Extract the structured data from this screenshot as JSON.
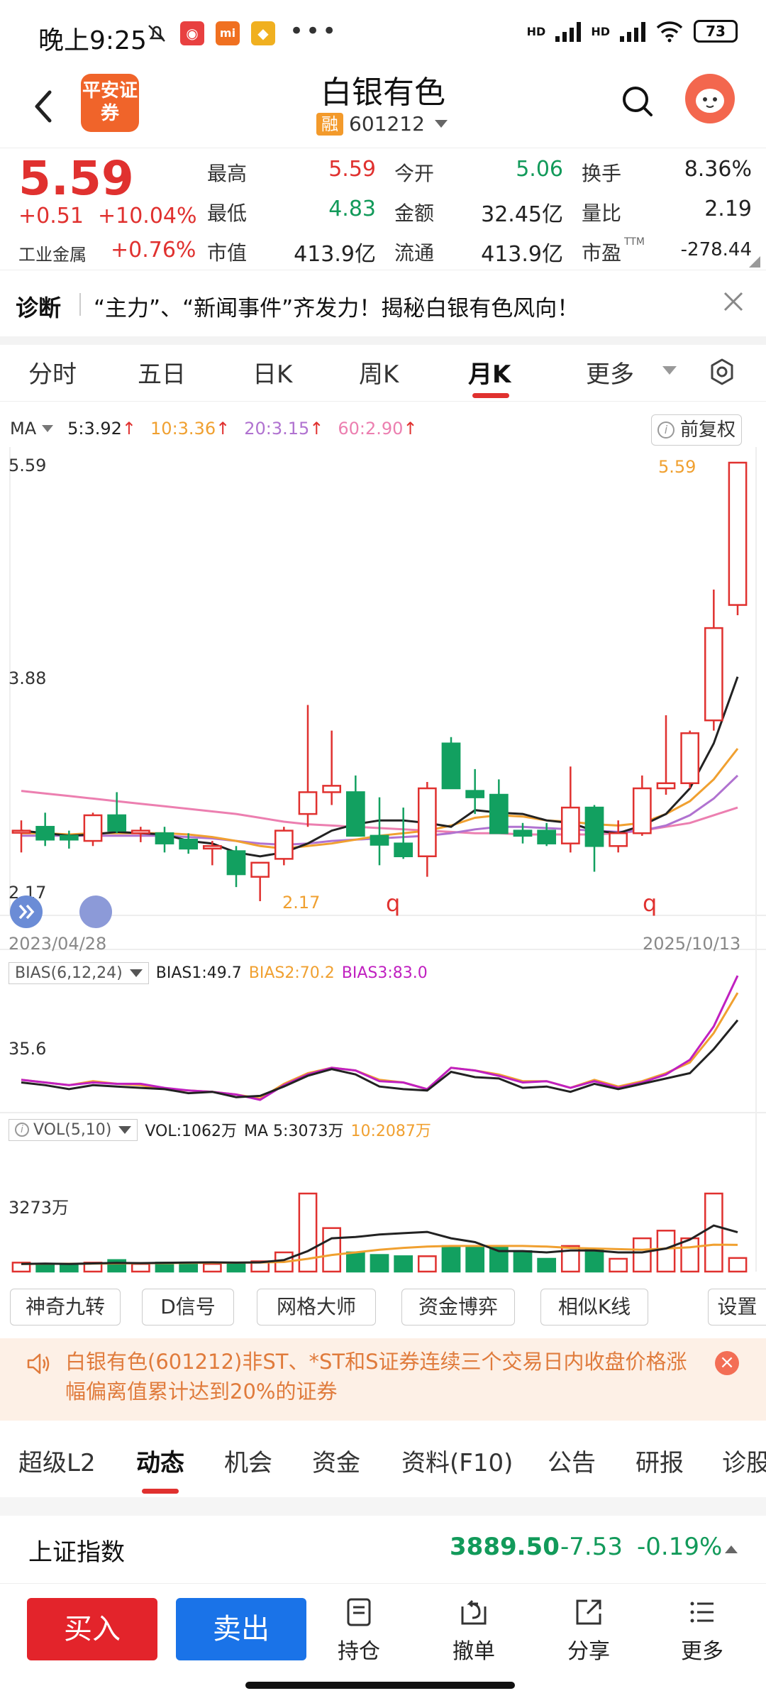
{
  "status_bar": {
    "time": "晚上9:25",
    "hd1": "HD",
    "hd2": "HD",
    "battery": "73"
  },
  "header": {
    "broker_logo_text": "平安证券",
    "title": "白银有色",
    "badge": "融",
    "code": "601212"
  },
  "quote": {
    "price": "5.59",
    "change": "+0.51",
    "change_pct": "+10.04%",
    "industry_name": "工业金属",
    "industry_change": "+0.76%",
    "stats": [
      {
        "label": "最高",
        "value": "5.59",
        "color": "#e0312f"
      },
      {
        "label": "最低",
        "value": "4.83",
        "color": "#129a5a"
      },
      {
        "label": "市值",
        "value": "413.9亿",
        "color": "#222222"
      },
      {
        "label": "今开",
        "value": "5.06",
        "color": "#129a5a"
      },
      {
        "label": "金额",
        "value": "32.45亿",
        "color": "#222222"
      },
      {
        "label": "流通",
        "value": "413.9亿",
        "color": "#222222"
      },
      {
        "label": "换手",
        "value": "8.36%",
        "color": "#222222"
      },
      {
        "label": "量比",
        "value": "2.19",
        "color": "#222222"
      },
      {
        "label": "市盈",
        "value": "-278.44",
        "color": "#222222"
      }
    ],
    "ttm": "TTM"
  },
  "diagnosis": {
    "label": "诊断",
    "text": "“主力”、“新闻事件”齐发力！揭秘白银有色风向！"
  },
  "period_tabs": [
    "分时",
    "五日",
    "日K",
    "周K",
    "月K",
    "更多"
  ],
  "active_period": "月K",
  "ma_legend": {
    "title": "MA",
    "ma5": "5:3.92",
    "ma10": "10:3.36",
    "ma20": "20:3.15",
    "ma60": "60:2.90",
    "arrow": "↑",
    "fq_button": "前复权"
  },
  "colors": {
    "up": "#e0312f",
    "down": "#12a060",
    "ma5": "#222222",
    "ma10": "#f0a030",
    "ma20": "#b072d0",
    "ma60": "#ec7fb0",
    "bias3": "#c020c0"
  },
  "chart_data": {
    "type": "candlestick",
    "period": "monthly",
    "x_start": "2023/04/28",
    "x_end": "2025/10/13",
    "ylim": [
      2.17,
      5.59
    ],
    "y_labels": [
      "5.59",
      "3.88",
      "2.17"
    ],
    "max_label": "5.59",
    "min_label": "2.17",
    "markers": [
      "q",
      "q"
    ],
    "candles": [
      {
        "o": 2.72,
        "h": 2.8,
        "l": 2.55,
        "c": 2.72
      },
      {
        "o": 2.75,
        "h": 2.86,
        "l": 2.6,
        "c": 2.65
      },
      {
        "o": 2.68,
        "h": 2.72,
        "l": 2.58,
        "c": 2.65
      },
      {
        "o": 2.64,
        "h": 2.86,
        "l": 2.6,
        "c": 2.84
      },
      {
        "o": 2.84,
        "h": 3.02,
        "l": 2.7,
        "c": 2.72
      },
      {
        "o": 2.7,
        "h": 2.75,
        "l": 2.63,
        "c": 2.72
      },
      {
        "o": 2.7,
        "h": 2.75,
        "l": 2.55,
        "c": 2.62
      },
      {
        "o": 2.65,
        "h": 2.7,
        "l": 2.54,
        "c": 2.58
      },
      {
        "o": 2.58,
        "h": 2.64,
        "l": 2.45,
        "c": 2.6
      },
      {
        "o": 2.56,
        "h": 2.6,
        "l": 2.28,
        "c": 2.38
      },
      {
        "o": 2.36,
        "h": 2.46,
        "l": 2.17,
        "c": 2.47
      },
      {
        "o": 2.5,
        "h": 2.75,
        "l": 2.45,
        "c": 2.72
      },
      {
        "o": 2.85,
        "h": 3.7,
        "l": 2.75,
        "c": 3.02
      },
      {
        "o": 3.02,
        "h": 3.5,
        "l": 2.92,
        "c": 3.07
      },
      {
        "o": 3.02,
        "h": 3.15,
        "l": 2.68,
        "c": 2.68
      },
      {
        "o": 2.68,
        "h": 2.98,
        "l": 2.45,
        "c": 2.61
      },
      {
        "o": 2.62,
        "h": 2.9,
        "l": 2.5,
        "c": 2.52
      },
      {
        "o": 2.52,
        "h": 3.1,
        "l": 2.36,
        "c": 3.05
      },
      {
        "o": 3.4,
        "h": 3.45,
        "l": 3.05,
        "c": 3.05
      },
      {
        "o": 3.03,
        "h": 3.2,
        "l": 2.85,
        "c": 2.98
      },
      {
        "o": 3.0,
        "h": 3.12,
        "l": 2.7,
        "c": 2.7
      },
      {
        "o": 2.72,
        "h": 2.78,
        "l": 2.62,
        "c": 2.68
      },
      {
        "o": 2.72,
        "h": 2.78,
        "l": 2.6,
        "c": 2.62
      },
      {
        "o": 2.62,
        "h": 3.22,
        "l": 2.55,
        "c": 2.9
      },
      {
        "o": 2.9,
        "h": 2.92,
        "l": 2.4,
        "c": 2.6
      },
      {
        "o": 2.6,
        "h": 2.8,
        "l": 2.55,
        "c": 2.7
      },
      {
        "o": 2.7,
        "h": 3.15,
        "l": 2.68,
        "c": 3.05
      },
      {
        "o": 3.05,
        "h": 3.62,
        "l": 3.0,
        "c": 3.09
      },
      {
        "o": 3.09,
        "h": 3.5,
        "l": 3.05,
        "c": 3.48
      },
      {
        "o": 3.58,
        "h": 4.6,
        "l": 3.5,
        "c": 4.3
      },
      {
        "o": 4.48,
        "h": 5.59,
        "l": 4.4,
        "c": 5.59
      }
    ],
    "ma5": [
      2.72,
      2.7,
      2.68,
      2.69,
      2.71,
      2.7,
      2.69,
      2.64,
      2.62,
      2.55,
      2.52,
      2.55,
      2.62,
      2.72,
      2.77,
      2.8,
      2.8,
      2.78,
      2.75,
      2.88,
      2.86,
      2.85,
      2.8,
      2.78,
      2.72,
      2.7,
      2.76,
      2.85,
      3.05,
      3.4,
      3.92
    ],
    "ma10": [
      2.7,
      2.7,
      2.69,
      2.7,
      2.7,
      2.7,
      2.7,
      2.69,
      2.67,
      2.64,
      2.6,
      2.58,
      2.6,
      2.62,
      2.65,
      2.68,
      2.7,
      2.72,
      2.76,
      2.82,
      2.84,
      2.83,
      2.8,
      2.79,
      2.77,
      2.76,
      2.78,
      2.85,
      2.95,
      3.12,
      3.36
    ],
    "ma20": [
      2.68,
      2.68,
      2.68,
      2.68,
      2.68,
      2.68,
      2.68,
      2.67,
      2.66,
      2.64,
      2.62,
      2.61,
      2.62,
      2.64,
      2.65,
      2.66,
      2.67,
      2.68,
      2.7,
      2.73,
      2.75,
      2.75,
      2.74,
      2.73,
      2.72,
      2.71,
      2.72,
      2.76,
      2.84,
      2.97,
      3.15
    ],
    "ma60": [
      3.03,
      3.01,
      2.99,
      2.97,
      2.95,
      2.93,
      2.91,
      2.89,
      2.87,
      2.85,
      2.82,
      2.79,
      2.77,
      2.76,
      2.75,
      2.74,
      2.73,
      2.72,
      2.71,
      2.7,
      2.7,
      2.69,
      2.69,
      2.69,
      2.69,
      2.7,
      2.72,
      2.75,
      2.78,
      2.84,
      2.9
    ]
  },
  "bias": {
    "title": "BIAS(6,12,24)",
    "b1": "BIAS1:49.7",
    "b2": "BIAS2:70.2",
    "b3": "BIAS3:83.0",
    "y_label": "35.6",
    "bias1": [
      3,
      1,
      -2,
      1,
      0,
      -1,
      -2,
      -5,
      -4,
      -8,
      -7,
      0,
      8,
      13,
      9,
      0,
      -2,
      -3,
      11,
      7,
      6,
      -1,
      0,
      -4,
      2,
      -2,
      2,
      6,
      10,
      28,
      49.7
    ],
    "bias2": [
      5,
      3,
      1,
      4,
      2,
      1,
      -2,
      -3,
      -4,
      -6,
      -9,
      2,
      10,
      14,
      12,
      5,
      3,
      -2,
      14,
      12,
      9,
      4,
      4,
      -1,
      5,
      0,
      4,
      10,
      18,
      40,
      70.2
    ],
    "bias3": [
      5,
      3,
      1,
      3,
      2,
      2,
      -1,
      -3,
      -4,
      -6,
      -10,
      1,
      9,
      14,
      12,
      4,
      3,
      -2,
      14,
      12,
      8,
      3,
      4,
      -1,
      4,
      -1,
      3,
      9,
      20,
      45,
      83.0
    ]
  },
  "vol": {
    "title": "VOL(5,10)",
    "v": "VOL:1062万",
    "ma5": "MA 5:3073万",
    "ma10": "10:2087万",
    "y_label": "3273万",
    "values": [
      700,
      600,
      500,
      700,
      900,
      600,
      700,
      650,
      600,
      700,
      800,
      1500,
      6100,
      3400,
      1500,
      1300,
      1200,
      1200,
      2000,
      1900,
      1900,
      1600,
      1000,
      2000,
      1700,
      1000,
      2600,
      3200,
      2600,
      6100,
      1062
    ],
    "ma5_values": [
      600,
      620,
      600,
      640,
      680,
      660,
      690,
      710,
      720,
      700,
      720,
      900,
      1600,
      2600,
      2700,
      2900,
      3000,
      3100,
      2600,
      2300,
      1600,
      1600,
      1500,
      1650,
      1650,
      1500,
      1500,
      1800,
      2500,
      3600,
      3073
    ],
    "ma10_values": [
      600,
      610,
      610,
      620,
      640,
      650,
      660,
      680,
      690,
      700,
      710,
      750,
      1000,
      1300,
      1500,
      1700,
      1850,
      1950,
      2000,
      2000,
      2000,
      2000,
      1950,
      1850,
      1800,
      1750,
      1700,
      1800,
      1900,
      2100,
      2087
    ]
  },
  "tools": [
    "神奇九转",
    "D信号",
    "网格大师",
    "资金博弈",
    "相似K线",
    "设置"
  ],
  "notice": {
    "text": "白银有色(601212)非ST、*ST和S证券连续三个交易日内收盘价格涨幅偏离值累计达到20%的证券"
  },
  "bottom_tabs": [
    "超级L2",
    "动态",
    "机会",
    "资金",
    "资料(F10)",
    "公告",
    "研报",
    "诊股"
  ],
  "active_bottom_tab": "动态",
  "index": {
    "name": "上证指数",
    "value": "3889.50",
    "change": "-7.53",
    "change_pct": "-0.19%"
  },
  "nav": {
    "buy": "买入",
    "sell": "卖出",
    "hold": "持仓",
    "cancel": "撤单",
    "share": "分享",
    "more": "更多"
  }
}
